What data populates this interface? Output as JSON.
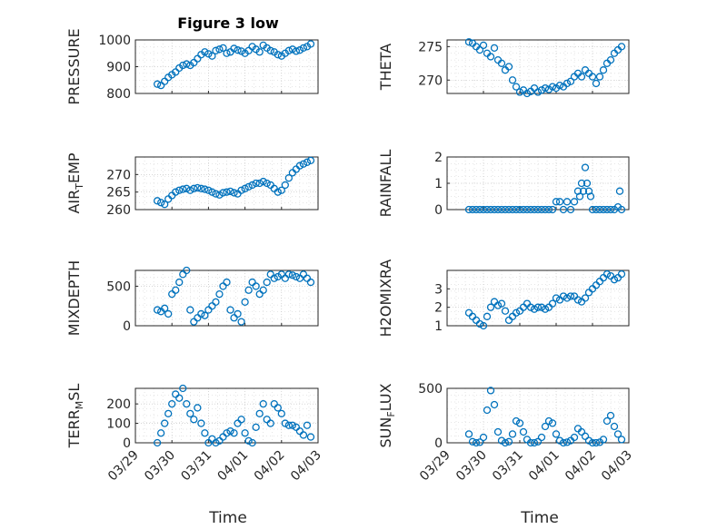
{
  "title": "Figure 3 low",
  "xlabel": "Time",
  "x_ticks": [
    "03/29",
    "03/30",
    "03/31",
    "04/01",
    "04/02",
    "04/03"
  ],
  "colors": {
    "marker": "#0072BD",
    "axis": "#262626",
    "grid": "#bfbfbf"
  },
  "chart_data": [
    {
      "type": "scatter",
      "ylabel_main": "PRESSURE",
      "ylabel_sub": "",
      "ylabel_tail": "",
      "ylim": [
        800,
        1000
      ],
      "yticks": [
        800,
        900,
        1000
      ],
      "x": [
        0.6,
        0.7,
        0.8,
        0.9,
        1.0,
        1.1,
        1.2,
        1.3,
        1.4,
        1.5,
        1.6,
        1.7,
        1.8,
        1.9,
        2.0,
        2.1,
        2.2,
        2.3,
        2.4,
        2.5,
        2.6,
        2.7,
        2.8,
        2.9,
        3.0,
        3.1,
        3.2,
        3.3,
        3.4,
        3.5,
        3.6,
        3.7,
        3.8,
        3.9,
        4.0,
        4.1,
        4.2,
        4.3,
        4.4,
        4.5,
        4.6,
        4.7,
        4.8
      ],
      "y": [
        835,
        830,
        845,
        860,
        870,
        880,
        895,
        905,
        910,
        905,
        915,
        930,
        945,
        955,
        948,
        940,
        960,
        965,
        970,
        950,
        955,
        968,
        962,
        958,
        950,
        960,
        975,
        965,
        955,
        980,
        970,
        960,
        955,
        945,
        940,
        950,
        960,
        965,
        958,
        962,
        970,
        975,
        985
      ]
    },
    {
      "type": "scatter",
      "ylabel_main": "THETA",
      "ylabel_sub": "",
      "ylabel_tail": "",
      "ylim": [
        268,
        276
      ],
      "yticks": [
        270,
        275
      ],
      "x": [
        0.6,
        0.7,
        0.8,
        0.9,
        1.0,
        1.1,
        1.2,
        1.3,
        1.4,
        1.5,
        1.6,
        1.7,
        1.8,
        1.9,
        2.0,
        2.1,
        2.2,
        2.3,
        2.4,
        2.5,
        2.6,
        2.7,
        2.8,
        2.9,
        3.0,
        3.1,
        3.2,
        3.3,
        3.4,
        3.5,
        3.6,
        3.7,
        3.8,
        3.9,
        4.0,
        4.1,
        4.2,
        4.3,
        4.4,
        4.5,
        4.6,
        4.7,
        4.8
      ],
      "y": [
        275.7,
        275.5,
        275.0,
        274.5,
        275.2,
        274.0,
        273.5,
        274.8,
        273.0,
        272.5,
        271.5,
        272.0,
        270.0,
        269.0,
        268.2,
        268.5,
        268.0,
        268.3,
        268.8,
        268.2,
        268.5,
        268.8,
        268.6,
        269.0,
        268.8,
        269.2,
        269.0,
        269.5,
        269.8,
        270.5,
        271.0,
        270.5,
        271.5,
        271.0,
        270.5,
        269.5,
        270.5,
        271.5,
        272.5,
        273.0,
        274.0,
        274.5,
        275.0
      ]
    },
    {
      "type": "scatter",
      "ylabel_main": "AIR",
      "ylabel_sub": "T",
      "ylabel_tail": "EMP",
      "ylim": [
        260,
        275
      ],
      "yticks": [
        260,
        265,
        270
      ],
      "x": [
        0.6,
        0.7,
        0.8,
        0.9,
        1.0,
        1.1,
        1.2,
        1.3,
        1.4,
        1.5,
        1.6,
        1.7,
        1.8,
        1.9,
        2.0,
        2.1,
        2.2,
        2.3,
        2.4,
        2.5,
        2.6,
        2.7,
        2.8,
        2.9,
        3.0,
        3.1,
        3.2,
        3.3,
        3.4,
        3.5,
        3.6,
        3.7,
        3.8,
        3.9,
        4.0,
        4.1,
        4.2,
        4.3,
        4.4,
        4.5,
        4.6,
        4.7,
        4.8
      ],
      "y": [
        262.5,
        262.0,
        261.5,
        263.0,
        264.0,
        265.0,
        265.5,
        265.8,
        266.0,
        265.5,
        266.0,
        266.2,
        266.0,
        265.8,
        265.5,
        265.0,
        264.5,
        264.2,
        264.8,
        265.0,
        265.2,
        264.8,
        264.5,
        265.5,
        266.0,
        266.5,
        267.0,
        267.5,
        267.5,
        268.0,
        267.5,
        267.0,
        266.0,
        265.0,
        265.5,
        267.0,
        269.0,
        270.5,
        271.5,
        272.5,
        273.0,
        273.5,
        274.0
      ]
    },
    {
      "type": "scatter",
      "ylabel_main": "RAINFALL",
      "ylabel_sub": "",
      "ylabel_tail": "",
      "ylim": [
        0,
        2
      ],
      "yticks": [
        0,
        1,
        2
      ],
      "x": [
        0.6,
        0.7,
        0.8,
        0.9,
        1.0,
        1.1,
        1.2,
        1.3,
        1.4,
        1.5,
        1.6,
        1.7,
        1.8,
        1.9,
        2.0,
        2.1,
        2.2,
        2.3,
        2.4,
        2.5,
        2.6,
        2.7,
        2.8,
        2.9,
        3.0,
        3.1,
        3.2,
        3.3,
        3.4,
        3.5,
        3.6,
        3.65,
        3.7,
        3.75,
        3.8,
        3.85,
        3.9,
        3.95,
        4.0,
        4.1,
        4.2,
        4.3,
        4.4,
        4.5,
        4.6,
        4.7,
        4.75,
        4.8
      ],
      "y": [
        0,
        0,
        0,
        0,
        0,
        0,
        0,
        0,
        0,
        0,
        0,
        0,
        0,
        0,
        0,
        0,
        0,
        0,
        0,
        0,
        0,
        0,
        0,
        0,
        0.3,
        0.3,
        0,
        0.3,
        0,
        0.3,
        0.7,
        0.5,
        1.0,
        0.7,
        1.6,
        1.0,
        0.7,
        0.5,
        0,
        0,
        0,
        0,
        0,
        0,
        0,
        0.1,
        0.7,
        0
      ]
    },
    {
      "type": "scatter",
      "ylabel_main": "MIXDEPTH",
      "ylabel_sub": "",
      "ylabel_tail": "",
      "ylim": [
        0,
        700
      ],
      "yticks": [
        0,
        500
      ],
      "x": [
        0.6,
        0.7,
        0.8,
        0.9,
        1.0,
        1.1,
        1.2,
        1.3,
        1.4,
        1.5,
        1.6,
        1.7,
        1.8,
        1.9,
        2.0,
        2.1,
        2.2,
        2.3,
        2.4,
        2.5,
        2.6,
        2.7,
        2.8,
        2.9,
        3.0,
        3.1,
        3.2,
        3.3,
        3.4,
        3.5,
        3.6,
        3.7,
        3.8,
        3.9,
        4.0,
        4.1,
        4.2,
        4.3,
        4.4,
        4.5,
        4.6,
        4.7,
        4.8
      ],
      "y": [
        200,
        180,
        220,
        150,
        400,
        450,
        550,
        650,
        700,
        200,
        50,
        100,
        150,
        130,
        200,
        250,
        300,
        400,
        500,
        550,
        200,
        100,
        150,
        50,
        300,
        450,
        550,
        500,
        400,
        450,
        550,
        650,
        600,
        620,
        650,
        600,
        650,
        640,
        620,
        600,
        650,
        600,
        550
      ]
    },
    {
      "type": "scatter",
      "ylabel_main": "H2OMIXRA",
      "ylabel_sub": "",
      "ylabel_tail": "",
      "ylim": [
        1,
        4
      ],
      "yticks": [
        1,
        2,
        3
      ],
      "x": [
        0.6,
        0.7,
        0.8,
        0.9,
        1.0,
        1.1,
        1.2,
        1.3,
        1.4,
        1.5,
        1.6,
        1.7,
        1.8,
        1.9,
        2.0,
        2.1,
        2.2,
        2.3,
        2.4,
        2.5,
        2.6,
        2.7,
        2.8,
        2.9,
        3.0,
        3.1,
        3.2,
        3.3,
        3.4,
        3.5,
        3.6,
        3.7,
        3.8,
        3.9,
        4.0,
        4.1,
        4.2,
        4.3,
        4.4,
        4.5,
        4.6,
        4.7,
        4.8
      ],
      "y": [
        1.7,
        1.5,
        1.3,
        1.1,
        1.0,
        1.5,
        2.0,
        2.3,
        2.1,
        2.2,
        1.8,
        1.3,
        1.5,
        1.7,
        1.8,
        2.0,
        2.2,
        2.0,
        1.9,
        2.0,
        2.0,
        1.9,
        2.0,
        2.2,
        2.5,
        2.4,
        2.6,
        2.5,
        2.6,
        2.6,
        2.4,
        2.3,
        2.5,
        2.8,
        3.0,
        3.2,
        3.4,
        3.6,
        3.8,
        3.7,
        3.5,
        3.6,
        3.8
      ]
    },
    {
      "type": "scatter",
      "ylabel_main": "TERR",
      "ylabel_sub": "M",
      "ylabel_tail": "SL",
      "ylim": [
        0,
        280
      ],
      "yticks": [
        0,
        100,
        200
      ],
      "x": [
        0.6,
        0.7,
        0.8,
        0.9,
        1.0,
        1.1,
        1.2,
        1.3,
        1.4,
        1.5,
        1.6,
        1.7,
        1.8,
        1.9,
        2.0,
        2.1,
        2.2,
        2.3,
        2.4,
        2.5,
        2.6,
        2.7,
        2.8,
        2.9,
        3.0,
        3.1,
        3.2,
        3.3,
        3.4,
        3.5,
        3.6,
        3.7,
        3.8,
        3.9,
        4.0,
        4.1,
        4.2,
        4.3,
        4.4,
        4.5,
        4.6,
        4.7,
        4.8
      ],
      "y": [
        0,
        50,
        100,
        150,
        200,
        250,
        230,
        280,
        200,
        150,
        120,
        180,
        100,
        50,
        0,
        20,
        0,
        10,
        30,
        50,
        60,
        50,
        100,
        120,
        50,
        10,
        0,
        80,
        150,
        200,
        120,
        100,
        200,
        180,
        150,
        100,
        90,
        90,
        80,
        60,
        40,
        90,
        30
      ]
    },
    {
      "type": "scatter",
      "ylabel_main": "SUN",
      "ylabel_sub": "F",
      "ylabel_tail": "LUX",
      "ylim": [
        0,
        500
      ],
      "yticks": [
        0,
        500
      ],
      "x": [
        0.6,
        0.7,
        0.8,
        0.9,
        1.0,
        1.1,
        1.2,
        1.3,
        1.4,
        1.5,
        1.6,
        1.7,
        1.8,
        1.9,
        2.0,
        2.1,
        2.2,
        2.3,
        2.4,
        2.5,
        2.6,
        2.7,
        2.8,
        2.9,
        3.0,
        3.1,
        3.2,
        3.3,
        3.4,
        3.5,
        3.6,
        3.7,
        3.8,
        3.9,
        4.0,
        4.1,
        4.2,
        4.3,
        4.4,
        4.5,
        4.6,
        4.7,
        4.8
      ],
      "y": [
        80,
        10,
        0,
        5,
        50,
        300,
        480,
        350,
        100,
        20,
        0,
        10,
        80,
        200,
        180,
        100,
        30,
        0,
        0,
        10,
        50,
        150,
        200,
        180,
        80,
        20,
        0,
        5,
        20,
        50,
        130,
        100,
        60,
        20,
        0,
        0,
        5,
        30,
        200,
        250,
        150,
        80,
        30
      ]
    }
  ]
}
